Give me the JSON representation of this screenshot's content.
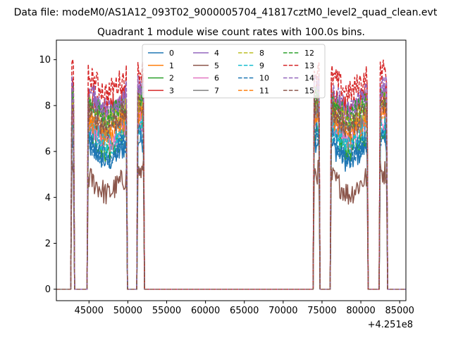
{
  "figure": {
    "suptitle": "Data file: modeM0/AS1A12_093T02_9000005704_41817cztM0_level2_quad_clean.evt",
    "title": "Quadrant 1 module wise count rates with 100.0s bins."
  },
  "chart_data": {
    "type": "line",
    "title": "Quadrant 1 module wise count rates with 100.0s bins.",
    "xlabel": "",
    "ylabel": "",
    "x_offset_label": "+4.251e8",
    "xlim": [
      40800,
      85800
    ],
    "ylim": [
      -0.5,
      10.85
    ],
    "xticks": [
      45000,
      50000,
      55000,
      60000,
      65000,
      70000,
      75000,
      80000,
      85000
    ],
    "xtick_labels": [
      "45000",
      "50000",
      "55000",
      "60000",
      "65000",
      "70000",
      "75000",
      "80000",
      "85000"
    ],
    "yticks": [
      0,
      2,
      4,
      6,
      8,
      10
    ],
    "ytick_labels": [
      "0",
      "2",
      "4",
      "6",
      "8",
      "10"
    ],
    "grid": false,
    "legend_location": "upper center",
    "time_segments": [
      {
        "start": 42800,
        "end": 43000
      },
      {
        "start": 44900,
        "end": 49800
      },
      {
        "start": 51300,
        "end": 52000
      },
      {
        "start": 74000,
        "end": 74600
      },
      {
        "start": 76200,
        "end": 80800
      },
      {
        "start": 82500,
        "end": 83300
      }
    ],
    "series": [
      {
        "name": "0",
        "color": "#1f77b4",
        "dash": "solid",
        "mean_level": 5.9
      },
      {
        "name": "1",
        "color": "#ff7f0e",
        "dash": "solid",
        "mean_level": 7.0
      },
      {
        "name": "2",
        "color": "#2ca02c",
        "dash": "solid",
        "mean_level": 6.4
      },
      {
        "name": "3",
        "color": "#d62728",
        "dash": "solid",
        "mean_level": 8.1
      },
      {
        "name": "4",
        "color": "#9467bd",
        "dash": "solid",
        "mean_level": 7.9
      },
      {
        "name": "5",
        "color": "#8c564b",
        "dash": "solid",
        "mean_level": 4.5
      },
      {
        "name": "6",
        "color": "#e377c2",
        "dash": "solid",
        "mean_level": 6.8
      },
      {
        "name": "7",
        "color": "#7f7f7f",
        "dash": "solid",
        "mean_level": 7.3
      },
      {
        "name": "8",
        "color": "#bcbd22",
        "dash": "dashed",
        "mean_level": 7.6
      },
      {
        "name": "9",
        "color": "#17becf",
        "dash": "dashed",
        "mean_level": 6.6
      },
      {
        "name": "10",
        "color": "#1f77b4",
        "dash": "dashed",
        "mean_level": 6.1
      },
      {
        "name": "11",
        "color": "#ff7f0e",
        "dash": "dashed",
        "mean_level": 7.1
      },
      {
        "name": "12",
        "color": "#2ca02c",
        "dash": "dashed",
        "mean_level": 7.8
      },
      {
        "name": "13",
        "color": "#d62728",
        "dash": "dashed",
        "mean_level": 8.9
      },
      {
        "name": "14",
        "color": "#9467bd",
        "dash": "dashed",
        "mean_level": 8.2
      },
      {
        "name": "15",
        "color": "#8c564b",
        "dash": "dashed",
        "mean_level": 7.4
      }
    ]
  }
}
